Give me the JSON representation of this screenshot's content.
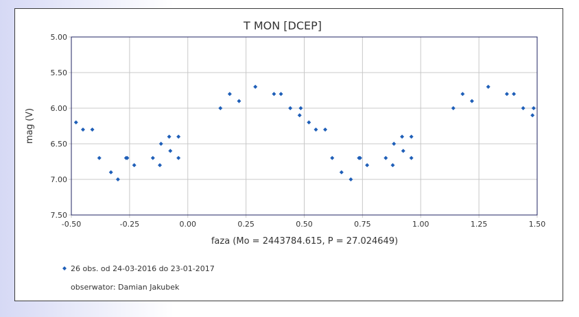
{
  "chart_data": {
    "type": "scatter",
    "title": "T MON [DCEP]",
    "xlabel": "faza (Mo = 2443784.615, P = 27.024649)",
    "ylabel": "mag (V)",
    "xlim": [
      -0.5,
      1.5
    ],
    "ylim": [
      5.0,
      7.5
    ],
    "y_inverted": true,
    "grid": true,
    "x_ticks": [
      "-0.50",
      "-0.25",
      "0.00",
      "0.25",
      "0.50",
      "0.75",
      "1.00",
      "1.25",
      "1.50"
    ],
    "y_ticks": [
      "5.00",
      "5.50",
      "6.00",
      "6.50",
      "7.00",
      "7.50"
    ],
    "series": [
      {
        "name": "26 obs. od 24-03-2016 do 23-01-2017",
        "color": "#1f5fb8",
        "x": [
          -0.48,
          -0.45,
          -0.41,
          -0.38,
          -0.33,
          -0.3,
          -0.265,
          -0.26,
          -0.23,
          -0.15,
          -0.12,
          -0.115,
          -0.08,
          -0.075,
          -0.04,
          -0.04,
          0.14,
          0.18,
          0.22,
          0.29,
          0.37,
          0.4,
          0.44,
          0.48,
          0.485,
          0.52,
          0.55,
          0.59,
          0.62,
          0.66,
          0.7,
          0.735,
          0.74,
          0.77,
          0.85,
          0.88,
          0.885,
          0.92,
          0.925,
          0.96,
          0.96,
          1.14,
          1.18,
          1.22,
          1.29,
          1.37,
          1.4,
          1.44,
          1.48,
          1.485
        ],
        "y": [
          6.2,
          6.3,
          6.3,
          6.7,
          6.9,
          7.0,
          6.7,
          6.7,
          6.8,
          6.7,
          6.8,
          6.5,
          6.4,
          6.6,
          6.4,
          6.7,
          6.0,
          5.8,
          5.9,
          5.7,
          5.8,
          5.8,
          6.0,
          6.1,
          6.0,
          6.2,
          6.3,
          6.3,
          6.7,
          6.9,
          7.0,
          6.7,
          6.7,
          6.8,
          6.7,
          6.8,
          6.5,
          6.4,
          6.6,
          6.4,
          6.7,
          6.0,
          5.8,
          5.9,
          5.7,
          5.8,
          5.8,
          6.0,
          6.1,
          6.0
        ]
      }
    ],
    "legend": {
      "entry": "26 obs. od 24-03-2016 do 23-01-2017",
      "observer": "obserwator: Damian Jakubek",
      "placement": "bottom-left"
    }
  }
}
